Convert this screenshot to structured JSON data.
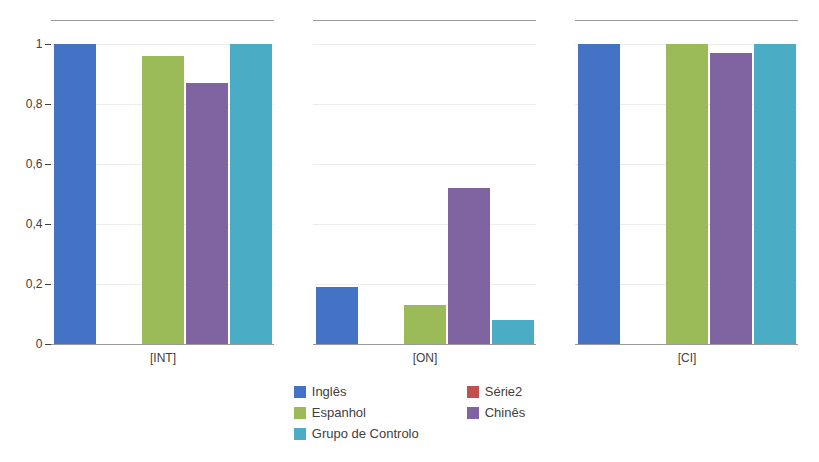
{
  "chart_data": {
    "type": "bar",
    "categories": [
      "[INT]",
      "[ON]",
      "[CI]"
    ],
    "series": [
      {
        "name": "Inglês",
        "color": "#4472C4",
        "values": [
          1.0,
          0.19,
          1.0
        ]
      },
      {
        "name": "Série2",
        "color": "#C0504D",
        "values": [
          0.0,
          0.0,
          0.0
        ]
      },
      {
        "name": "Espanhol",
        "color": "#9BBB59",
        "values": [
          0.96,
          0.13,
          1.0
        ]
      },
      {
        "name": "Chinês",
        "color": "#8064A2",
        "values": [
          0.87,
          0.52,
          0.97
        ]
      },
      {
        "name": "Grupo de Controlo",
        "color": "#4BACC6",
        "values": [
          1.0,
          0.08,
          1.0
        ]
      }
    ],
    "ylim": [
      0,
      1.08
    ],
    "yticks": [
      0,
      {
        "value": 0.2,
        "label": "0,2"
      },
      {
        "value": 0.4,
        "label": "0,4"
      },
      {
        "value": 0.6,
        "label": "0,6"
      },
      {
        "value": 0.8,
        "label": "0,8"
      },
      1
    ],
    "grid": true,
    "legend": "bottom"
  }
}
